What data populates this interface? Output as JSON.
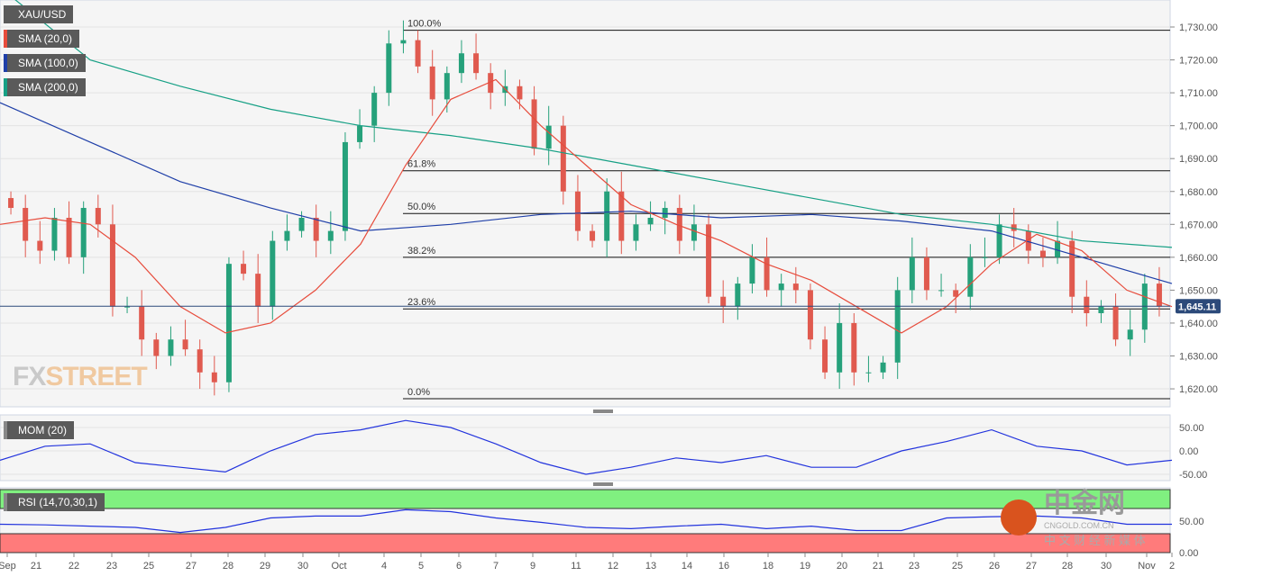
{
  "symbol": "XAU/USD",
  "legend": [
    {
      "label": "SMA (20,0)",
      "color": "#e74c3c"
    },
    {
      "label": "SMA (100,0)",
      "color": "#1f3fa8"
    },
    {
      "label": "SMA (200,0)",
      "color": "#16a085"
    }
  ],
  "watermark": {
    "fx": "FX",
    "street": "STREET"
  },
  "cn_watermark": {
    "title": "中金网",
    "site": "CNGOLD.COM.CN",
    "sub": "中 文 财 经 新 媒 体"
  },
  "chart_data": {
    "type": "candlestick",
    "yaxis": {
      "min": 1615,
      "max": 1733,
      "ticks": [
        "1,620.00",
        "1,630.00",
        "1,640.00",
        "1,650.00",
        "1,660.00",
        "1,670.00",
        "1,680.00",
        "1,690.00",
        "1,700.00",
        "1,710.00",
        "1,720.00",
        "1,730.00"
      ],
      "tick_values": [
        1620,
        1630,
        1640,
        1650,
        1660,
        1670,
        1680,
        1690,
        1700,
        1710,
        1720,
        1730
      ]
    },
    "last_price": {
      "value": 1645.11,
      "label": "1,645.11"
    },
    "xticks": [
      "Sep",
      "21",
      "22",
      "23",
      "25",
      "27",
      "28",
      "29",
      "30",
      "Oct",
      "4",
      "5",
      "6",
      "7",
      "9",
      "11",
      "12",
      "13",
      "14",
      "16",
      "18",
      "19",
      "20",
      "21",
      "23",
      "25",
      "26",
      "27",
      "28",
      "30",
      "Nov",
      "2"
    ],
    "closes": [
      1675,
      1665,
      1662,
      1672,
      1660,
      1675,
      1670,
      1645,
      1645,
      1635,
      1630,
      1635,
      1632,
      1625,
      1622,
      1658,
      1655,
      1645,
      1665,
      1668,
      1672,
      1665,
      1668,
      1695,
      1700,
      1710,
      1725,
      1726,
      1718,
      1708,
      1716,
      1722,
      1716,
      1710,
      1712,
      1708,
      1693,
      1700,
      1680,
      1668,
      1665,
      1680,
      1665,
      1670,
      1672,
      1675,
      1665,
      1670,
      1648,
      1645,
      1652,
      1660,
      1650,
      1652,
      1650,
      1635,
      1625,
      1640,
      1625,
      1625,
      1628,
      1650,
      1660,
      1650,
      1650,
      1648,
      1660,
      1660,
      1670,
      1668,
      1662,
      1660,
      1665,
      1648,
      1643,
      1645,
      1635,
      1638,
      1652,
      1645
    ],
    "sma20": [
      1670,
      1672,
      1670,
      1660,
      1645,
      1637,
      1640,
      1650,
      1664,
      1688,
      1708,
      1714,
      1700,
      1688,
      1676,
      1670,
      1665,
      1658,
      1653,
      1645,
      1637,
      1645,
      1658,
      1667,
      1662,
      1650,
      1645
    ],
    "sma100": [
      1707,
      1695,
      1683,
      1675,
      1668,
      1670,
      1673,
      1674,
      1672,
      1673,
      1671,
      1668,
      1660,
      1652
    ],
    "sma200": [
      1742,
      1720,
      1712,
      1705,
      1700,
      1697,
      1693,
      1688,
      1683,
      1678,
      1673,
      1670,
      1665,
      1663
    ],
    "fibonacci": [
      {
        "label": "100.0%",
        "value": 1729
      },
      {
        "label": "61.8%",
        "value": 1686.3
      },
      {
        "label": "50.0%",
        "value": 1673.3
      },
      {
        "label": "38.2%",
        "value": 1660
      },
      {
        "label": "23.6%",
        "value": 1644.3
      },
      {
        "label": "0.0%",
        "value": 1617
      }
    ],
    "mom": {
      "label": "MOM (20)",
      "ticks": [
        "50.00",
        "0.00",
        "-50.00"
      ],
      "tick_values": [
        50,
        0,
        -50
      ],
      "values": [
        -20,
        10,
        15,
        -25,
        -35,
        -45,
        0,
        35,
        45,
        65,
        50,
        15,
        -25,
        -50,
        -35,
        -15,
        -25,
        -10,
        -35,
        -35,
        0,
        20,
        45,
        10,
        0,
        -30,
        -20
      ]
    },
    "rsi": {
      "label": "RSI (14,70,30,1)",
      "ticks": [
        "50.00",
        "0.00"
      ],
      "tick_values": [
        50,
        0
      ],
      "upper": 70,
      "lower": 30,
      "values": [
        45,
        44,
        42,
        40,
        32,
        40,
        55,
        58,
        58,
        68,
        65,
        55,
        48,
        40,
        38,
        42,
        45,
        38,
        42,
        35,
        35,
        55,
        57,
        58,
        55,
        45,
        45
      ]
    }
  }
}
